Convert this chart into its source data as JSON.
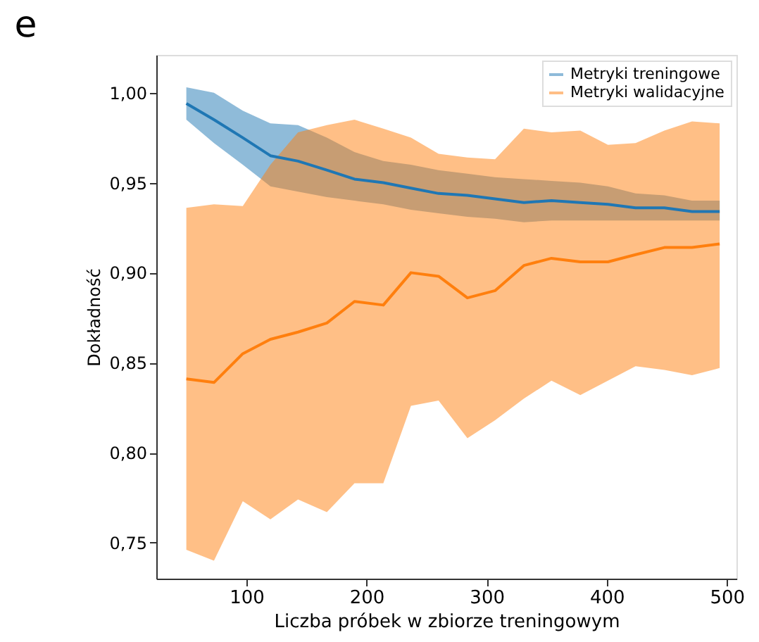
{
  "chart_data": {
    "type": "line",
    "title": "e",
    "xlabel": "Liczba próbek w zbiorze treningowym",
    "ylabel": "Dokładność",
    "x": [
      50,
      73,
      97,
      120,
      143,
      167,
      190,
      214,
      237,
      260,
      284,
      307,
      331,
      354,
      378,
      401,
      424,
      448,
      471,
      494
    ],
    "xlim": [
      25,
      508
    ],
    "xticks": [
      100,
      200,
      300,
      400,
      500
    ],
    "ylim": [
      0.73,
      1.021
    ],
    "yticks": [
      {
        "value": 0.75,
        "label": "0,75"
      },
      {
        "value": 0.8,
        "label": "0,80"
      },
      {
        "value": 0.85,
        "label": "0,85"
      },
      {
        "value": 0.9,
        "label": "0,90"
      },
      {
        "value": 0.95,
        "label": "0,95"
      },
      {
        "value": 1.0,
        "label": "1,00"
      }
    ],
    "series": [
      {
        "name": "Metryki treningowe",
        "color": "#1f77b4",
        "values": [
          0.994,
          0.985,
          0.975,
          0.965,
          0.962,
          0.957,
          0.952,
          0.95,
          0.947,
          0.944,
          0.943,
          0.941,
          0.939,
          0.94,
          0.939,
          0.938,
          0.936,
          0.936,
          0.934,
          0.934
        ],
        "upper": [
          1.003,
          1.0,
          0.99,
          0.983,
          0.982,
          0.975,
          0.967,
          0.962,
          0.96,
          0.957,
          0.955,
          0.953,
          0.952,
          0.951,
          0.95,
          0.948,
          0.944,
          0.943,
          0.94,
          0.94
        ],
        "lower": [
          0.985,
          0.972,
          0.96,
          0.948,
          0.945,
          0.942,
          0.94,
          0.938,
          0.935,
          0.933,
          0.931,
          0.93,
          0.928,
          0.929,
          0.929,
          0.929,
          0.929,
          0.929,
          0.929,
          0.929
        ]
      },
      {
        "name": "Metryki walidacyjne",
        "color": "#ff7f0e",
        "values": [
          0.841,
          0.839,
          0.855,
          0.863,
          0.867,
          0.872,
          0.884,
          0.882,
          0.9,
          0.898,
          0.886,
          0.89,
          0.904,
          0.908,
          0.906,
          0.906,
          0.91,
          0.914,
          0.914,
          0.916
        ],
        "upper": [
          0.936,
          0.938,
          0.937,
          0.96,
          0.978,
          0.982,
          0.985,
          0.98,
          0.975,
          0.966,
          0.964,
          0.963,
          0.98,
          0.978,
          0.979,
          0.971,
          0.972,
          0.979,
          0.984,
          0.983
        ],
        "lower": [
          0.746,
          0.74,
          0.773,
          0.763,
          0.774,
          0.767,
          0.783,
          0.783,
          0.826,
          0.829,
          0.808,
          0.818,
          0.83,
          0.84,
          0.832,
          0.84,
          0.848,
          0.846,
          0.843,
          0.847
        ]
      }
    ],
    "legend": "top right",
    "grid": false,
    "marker": "none",
    "line_style": "solid"
  }
}
